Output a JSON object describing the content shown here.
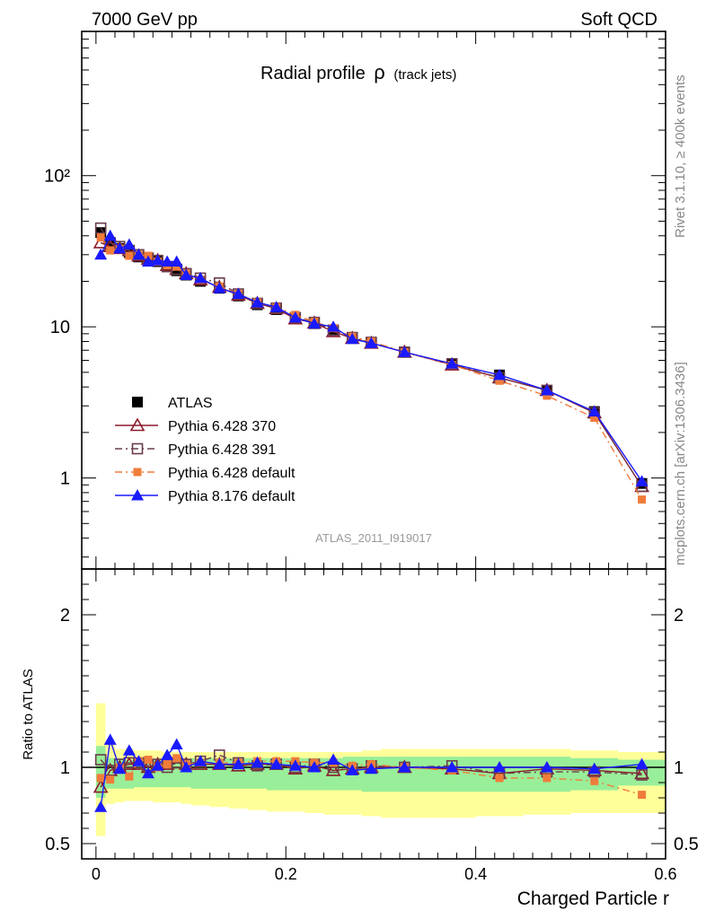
{
  "header": {
    "left": "7000 GeV pp",
    "right": "Soft QCD"
  },
  "side_labels": {
    "top": "Rivet 3.1.10, ≥ 400k events",
    "bottom": "mcplots.cern.ch [arXiv:1306.3436]"
  },
  "chart_data": {
    "type": "line",
    "title": "Radial profile",
    "title_symbol": "ρ",
    "title_suffix": "(track jets)",
    "watermark": "ATLAS_2011_I919017",
    "xlabel": "Charged Particle r",
    "ylabel_ratio": "Ratio to ATLAS",
    "xlim": [
      -0.015,
      0.6
    ],
    "ylim_main": [
      0.25,
      900
    ],
    "ylim_ratio": [
      0.4,
      2.3
    ],
    "y_scale_main": "log",
    "legend_position": "lower-left",
    "x_ticks": [
      "0",
      "0.2",
      "0.4",
      "0.6"
    ],
    "y_ticks_main": [
      "1",
      "10",
      "10²"
    ],
    "y_ticks_ratio": [
      "0.5",
      "1",
      "2"
    ],
    "x": [
      0.005,
      0.015,
      0.025,
      0.035,
      0.045,
      0.055,
      0.065,
      0.075,
      0.085,
      0.095,
      0.11,
      0.13,
      0.15,
      0.17,
      0.19,
      0.21,
      0.23,
      0.25,
      0.27,
      0.29,
      0.325,
      0.375,
      0.425,
      0.475,
      0.525,
      0.575
    ],
    "series": [
      {
        "name": "ATLAS",
        "color": "#000000",
        "marker": "square-filled",
        "dash": "none",
        "values": [
          42,
          35,
          33,
          31,
          29,
          28,
          27,
          25,
          23.5,
          22,
          20,
          18,
          16,
          14,
          13,
          11.5,
          10.5,
          9.5,
          8.5,
          7.8,
          6.8,
          5.7,
          4.8,
          3.8,
          2.75,
          0.92
        ],
        "ratio": [
          1,
          1,
          1,
          1,
          1,
          1,
          1,
          1,
          1,
          1,
          1,
          1,
          1,
          1,
          1,
          1,
          1,
          1,
          1,
          1,
          1,
          1,
          1,
          1,
          1,
          1
        ]
      },
      {
        "name": "Pythia 6.428 370",
        "color": "#8b1a2b",
        "marker": "triangle-open",
        "dash": "none",
        "values": [
          36,
          34,
          33,
          32,
          29.5,
          28,
          27.5,
          25.5,
          24,
          22.5,
          20.5,
          18.3,
          16.2,
          14.3,
          13.2,
          11.3,
          10.6,
          9.3,
          8.4,
          7.8,
          6.8,
          5.6,
          4.6,
          3.8,
          2.7,
          0.88
        ],
        "ratio": [
          0.87,
          0.98,
          1.0,
          1.02,
          1.02,
          1.0,
          1.02,
          1.02,
          1.03,
          1.02,
          1.02,
          1.02,
          1.01,
          1.02,
          1.02,
          0.99,
          1.01,
          0.98,
          0.99,
          1.0,
          1.0,
          0.99,
          0.96,
          0.99,
          0.98,
          0.96
        ]
      },
      {
        "name": "Pythia 6.428 391",
        "color": "#6a3d4a",
        "marker": "square-open",
        "dash": "dash-dot",
        "values": [
          45,
          36,
          34,
          32,
          30,
          28.5,
          27.5,
          25,
          24,
          22.5,
          21,
          19.5,
          16.5,
          14.3,
          13.3,
          11.5,
          10.7,
          9.5,
          8.5,
          7.9,
          6.8,
          5.7,
          4.6,
          3.8,
          2.7,
          0.88
        ],
        "ratio": [
          1.05,
          0.98,
          1.02,
          1.03,
          1.03,
          1.01,
          1.02,
          1.0,
          1.03,
          1.02,
          1.04,
          1.08,
          1.03,
          1.01,
          1.02,
          1.0,
          1.02,
          1.0,
          0.99,
          1.01,
          1.0,
          1.01,
          0.96,
          0.97,
          0.97,
          0.95
        ]
      },
      {
        "name": "Pythia 6.428 default",
        "color": "#f07c3a",
        "marker": "square-filled-small",
        "dash": "dash-dot",
        "values": [
          39,
          32,
          33,
          29.5,
          30,
          29.5,
          27,
          25.5,
          25,
          22.5,
          20.5,
          18.5,
          16.5,
          14.5,
          13.5,
          12,
          10.8,
          9.8,
          8.6,
          8.0,
          6.8,
          5.6,
          4.4,
          3.5,
          2.5,
          0.72
        ],
        "ratio": [
          0.93,
          0.92,
          1.0,
          0.94,
          1.04,
          1.05,
          1.0,
          1.02,
          1.06,
          1.02,
          1.03,
          1.03,
          1.03,
          1.04,
          1.04,
          1.04,
          1.03,
          1.03,
          1.01,
          1.02,
          1.0,
          0.98,
          0.93,
          0.93,
          0.91,
          0.82
        ]
      },
      {
        "name": "Pythia 8.176 default",
        "color": "#1a1aff",
        "marker": "triangle-filled",
        "dash": "none",
        "values": [
          30,
          40,
          33,
          35,
          30,
          27,
          27.5,
          27,
          27,
          22,
          21,
          18,
          16.5,
          14.5,
          13.5,
          11.5,
          10.5,
          10,
          8.3,
          7.8,
          6.8,
          5.7,
          4.8,
          3.8,
          2.75,
          0.95
        ],
        "ratio": [
          0.74,
          1.18,
          0.99,
          1.11,
          1.04,
          0.96,
          1.01,
          1.08,
          1.15,
          1.0,
          1.04,
          1.02,
          1.02,
          1.03,
          1.02,
          1.01,
          1.0,
          1.05,
          0.98,
          0.99,
          1.0,
          1.0,
          1.0,
          1.0,
          0.99,
          1.02
        ]
      }
    ],
    "data_band_ratio": {
      "inner_low": [
        0.8,
        0.86,
        0.86,
        0.86,
        0.87,
        0.87,
        0.87,
        0.87,
        0.87,
        0.87,
        0.86,
        0.86,
        0.86,
        0.86,
        0.85,
        0.85,
        0.85,
        0.85,
        0.85,
        0.84,
        0.84,
        0.84,
        0.84,
        0.84,
        0.85,
        0.88
      ],
      "inner_high": [
        1.14,
        1.06,
        1.06,
        1.05,
        1.05,
        1.05,
        1.05,
        1.05,
        1.05,
        1.05,
        1.06,
        1.06,
        1.06,
        1.06,
        1.06,
        1.06,
        1.06,
        1.06,
        1.07,
        1.07,
        1.07,
        1.07,
        1.07,
        1.07,
        1.06,
        1.05
      ],
      "outer_low": [
        0.55,
        0.76,
        0.77,
        0.78,
        0.78,
        0.78,
        0.77,
        0.77,
        0.77,
        0.76,
        0.75,
        0.74,
        0.73,
        0.72,
        0.71,
        0.71,
        0.7,
        0.69,
        0.69,
        0.68,
        0.67,
        0.67,
        0.68,
        0.69,
        0.7,
        0.7
      ],
      "outer_high": [
        1.42,
        1.15,
        1.12,
        1.12,
        1.11,
        1.11,
        1.11,
        1.1,
        1.1,
        1.1,
        1.1,
        1.1,
        1.1,
        1.1,
        1.1,
        1.1,
        1.1,
        1.1,
        1.1,
        1.11,
        1.12,
        1.12,
        1.12,
        1.12,
        1.11,
        1.1
      ]
    },
    "bin_edges": [
      0.0,
      0.01,
      0.02,
      0.03,
      0.04,
      0.05,
      0.06,
      0.07,
      0.08,
      0.09,
      0.1,
      0.12,
      0.14,
      0.16,
      0.18,
      0.2,
      0.22,
      0.24,
      0.26,
      0.28,
      0.3,
      0.35,
      0.4,
      0.45,
      0.5,
      0.55,
      0.6
    ]
  }
}
